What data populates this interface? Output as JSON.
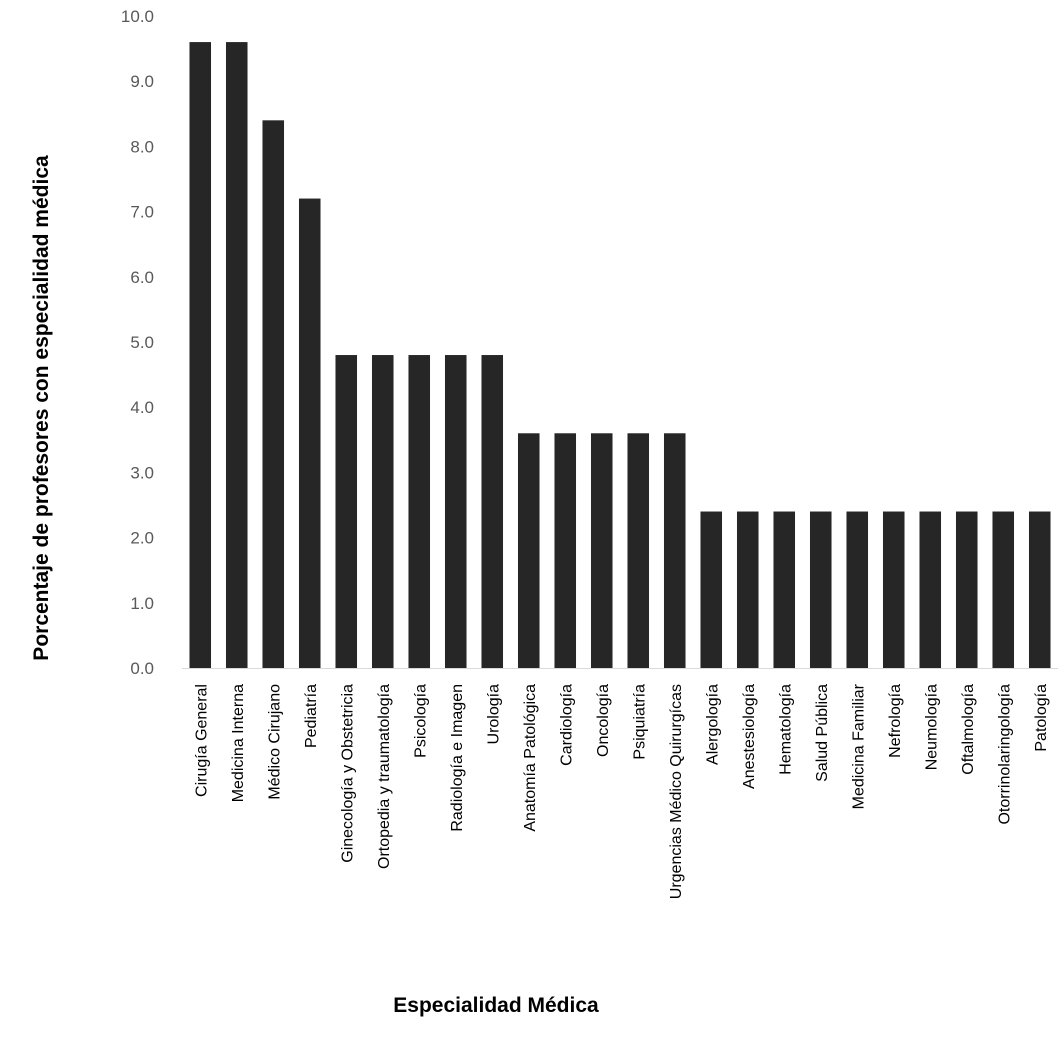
{
  "chart_data": {
    "type": "bar",
    "title": "",
    "xlabel": "Especialidad Médica",
    "ylabel": "Porcentaje de profesores con especialidad médica",
    "ylim": [
      0,
      10
    ],
    "yticks": [
      "0.0",
      "1.0",
      "2.0",
      "3.0",
      "4.0",
      "5.0",
      "6.0",
      "7.0",
      "8.0",
      "9.0",
      "10.0"
    ],
    "grid": false,
    "legend": "none",
    "categories": [
      "Cirugía General",
      "Medicina Interna",
      "Médico Cirujano",
      "Pediatría",
      "Ginecología y Obstetricia",
      "Ortopedia y traumatología",
      "Psicología",
      "Radiología e Imagen",
      "Urología",
      "Anatomía Patológica",
      "Cardiología",
      "Oncología",
      "Psiquiatría",
      "Urgencias Médico Quirurgícas",
      "Alergología",
      "Anestesiología",
      "Hematología",
      "Salud Pública",
      "Medicina Familiar",
      "Nefrología",
      "Neumología",
      "Oftalmología",
      "Otorrinolaringología",
      "Patología"
    ],
    "values": [
      9.6,
      9.6,
      8.4,
      7.2,
      4.8,
      4.8,
      4.8,
      4.8,
      4.8,
      3.6,
      3.6,
      3.6,
      3.6,
      3.6,
      2.4,
      2.4,
      2.4,
      2.4,
      2.4,
      2.4,
      2.4,
      2.4,
      2.4,
      2.4
    ],
    "colors": {
      "bar": "#262626",
      "axis": "#d9d9d9",
      "tick_text": "#595959",
      "label_text": "#000000"
    }
  }
}
